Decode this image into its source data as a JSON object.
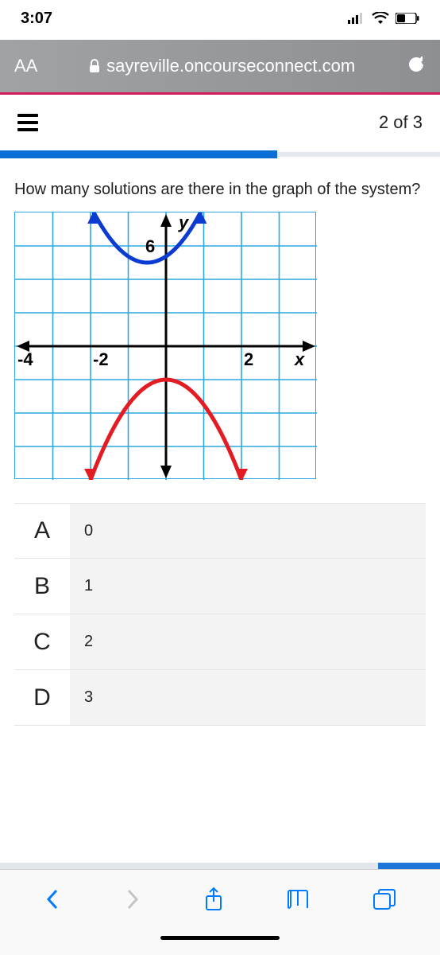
{
  "status": {
    "time": "3:07"
  },
  "browser": {
    "aa": "AA",
    "url": "sayreville.oncourseconnect.com"
  },
  "page": {
    "progress_label": "2 of 3",
    "progress_fill_pct": 63,
    "bottom_progress_fill_pct": 14
  },
  "question": {
    "text": "How many solutions are there in the graph of the system?"
  },
  "graph": {
    "type": "line-plot",
    "grid_color": "#2aa9e0",
    "axis_color": "#000000",
    "blue_curve_color": "#0b3bd1",
    "red_curve_color": "#e31b23",
    "x_ticks": [
      -4,
      -2,
      2
    ],
    "x_tick_label_end": "x",
    "y_label_top": "y",
    "y_tick_label": "6",
    "xlim": [
      -4,
      4
    ],
    "ylim": [
      -8,
      8
    ],
    "blue_parabola": {
      "vertex": [
        -0.5,
        5
      ],
      "a": 1.5,
      "direction": "up"
    },
    "red_parabola": {
      "vertex": [
        0,
        -2
      ],
      "a": -1.5,
      "direction": "down"
    },
    "cols": 8,
    "rows": 8
  },
  "answers": [
    {
      "letter": "A",
      "value": "0"
    },
    {
      "letter": "B",
      "value": "1"
    },
    {
      "letter": "C",
      "value": "2"
    },
    {
      "letter": "D",
      "value": "3"
    }
  ]
}
